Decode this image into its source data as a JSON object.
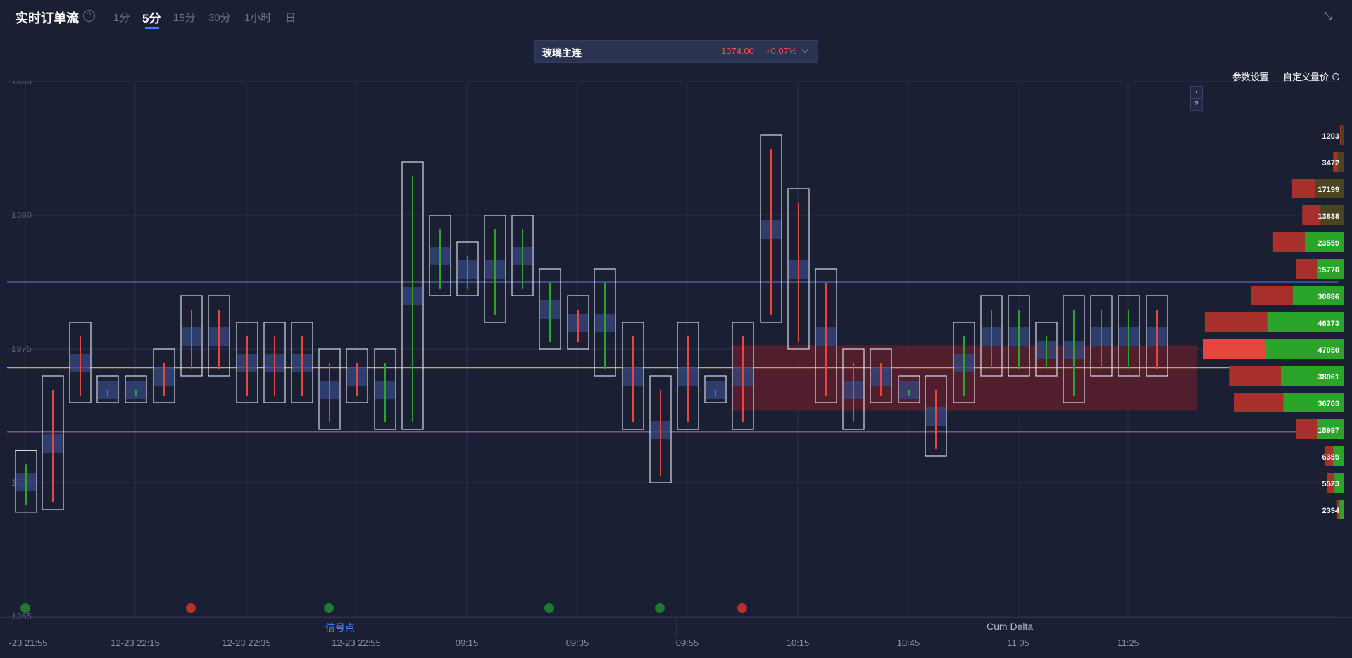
{
  "header": {
    "title": "实时订单流",
    "help_icon": "?",
    "timeframes": [
      "1分",
      "5分",
      "15分",
      "30分",
      "1小时",
      "日"
    ],
    "active_timeframe": "5分"
  },
  "symbol": {
    "name": "玻璃主连",
    "price": "1374.00",
    "change": "+0.07%"
  },
  "toolbar": {
    "settings_label": "参数设置",
    "custom_price_label": "自定义量价"
  },
  "chart_data": {
    "type": "footprint",
    "y_ticks": [
      1385,
      1380,
      1375,
      1370,
      1365
    ],
    "x_labels": [
      "-23 21:55",
      "12-23 22:15",
      "12-23 22:35",
      "12-23 22:55",
      "09:15",
      "09:35",
      "09:55",
      "10:15",
      "10:45",
      "11:05",
      "11:25"
    ],
    "current_price": 1374,
    "volume_profile": [
      {
        "price": 1383,
        "volume": 1203
      },
      {
        "price": 1382,
        "volume": 3472
      },
      {
        "price": 1381,
        "volume": 17199
      },
      {
        "price": 1380,
        "volume": 13838
      },
      {
        "price": 1379,
        "volume": 23559
      },
      {
        "price": 1378,
        "volume": 15770
      },
      {
        "price": 1377,
        "volume": 30886
      },
      {
        "price": 1376,
        "volume": 46373
      },
      {
        "price": 1375,
        "volume": 47050
      },
      {
        "price": 1374,
        "volume": 38061
      },
      {
        "price": 1373,
        "volume": 36703
      },
      {
        "price": 1372,
        "volume": 15997
      },
      {
        "price": 1371,
        "volume": 6359
      },
      {
        "price": 1370,
        "volume": 5523
      },
      {
        "price": 1369,
        "volume": 2394
      }
    ]
  },
  "bottom_tabs": {
    "signal": "信号点",
    "delta": "Cum Delta"
  },
  "colors": {
    "background": "#1b1f33",
    "up": "#2aa52a",
    "down": "#e8453c",
    "accent": "#3d7cff"
  }
}
